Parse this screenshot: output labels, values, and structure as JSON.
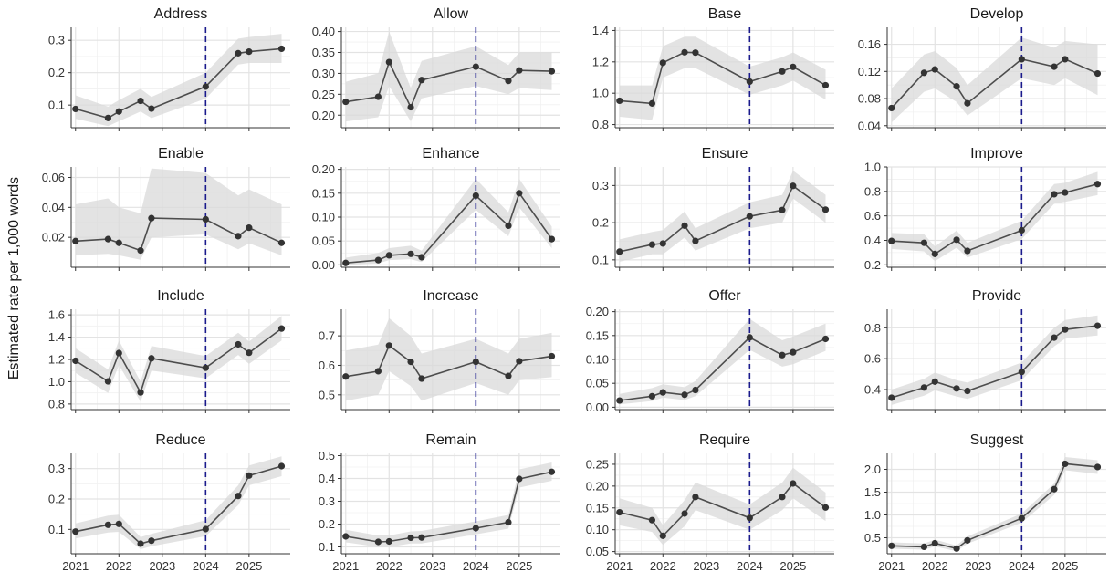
{
  "chart_data": {
    "type": "line",
    "ylabel": "Estimated rate per 1,000 words",
    "x_ticks": [
      2021,
      2022,
      2023,
      2024,
      2025
    ],
    "x": [
      2021.0,
      2021.75,
      2022.0,
      2022.5,
      2022.75,
      2023.0,
      2024.0,
      2024.75,
      2025.0,
      2025.75
    ],
    "reference_line_x": 2024.0,
    "colors": {
      "line": "#4d4d4d",
      "point": "#333333",
      "ribbon": "#d9d9d9",
      "reference": "#1a1a8c",
      "grid_major": "#e3e3e3",
      "grid_minor": "#f1f1f1"
    },
    "panels": [
      {
        "title": "Address",
        "ylim": [
          0.03,
          0.34
        ],
        "yticks": [
          "0.1",
          "0.2",
          "0.3"
        ],
        "values": [
          0.088,
          0.06,
          0.08,
          0.113,
          0.089,
          null,
          0.157,
          0.26,
          0.265,
          0.274
        ],
        "lower": [
          0.058,
          0.035,
          0.05,
          0.08,
          0.06,
          null,
          0.12,
          0.225,
          0.23,
          0.23
        ],
        "upper": [
          0.13,
          0.095,
          0.115,
          0.15,
          0.125,
          null,
          0.2,
          0.305,
          0.31,
          0.32
        ]
      },
      {
        "title": "Allow",
        "ylim": [
          0.17,
          0.41
        ],
        "yticks": [
          "0.20",
          "0.25",
          "0.30",
          "0.35",
          "0.40"
        ],
        "values": [
          0.232,
          0.244,
          0.327,
          0.219,
          0.284,
          null,
          0.316,
          0.282,
          0.307,
          0.305
        ],
        "lower": [
          0.185,
          0.195,
          0.27,
          0.185,
          0.24,
          null,
          0.27,
          0.25,
          0.265,
          0.26
        ],
        "upper": [
          0.28,
          0.3,
          0.4,
          0.265,
          0.33,
          null,
          0.365,
          0.32,
          0.35,
          0.35
        ]
      },
      {
        "title": "Base",
        "ylim": [
          0.78,
          1.42
        ],
        "yticks": [
          "0.8",
          "1.0",
          "1.2",
          "1.4"
        ],
        "values": [
          0.952,
          0.935,
          1.194,
          1.261,
          1.259,
          null,
          1.074,
          1.139,
          1.168,
          1.051
        ],
        "lower": [
          0.85,
          0.83,
          1.1,
          1.16,
          1.16,
          null,
          0.99,
          1.05,
          1.08,
          0.96
        ],
        "upper": [
          1.05,
          1.05,
          1.3,
          1.36,
          1.36,
          null,
          1.17,
          1.23,
          1.26,
          1.15
        ]
      },
      {
        "title": "Develop",
        "ylim": [
          0.037,
          0.185
        ],
        "yticks": [
          "0.04",
          "0.08",
          "0.12",
          "0.16"
        ],
        "values": [
          0.066,
          0.118,
          0.123,
          0.098,
          0.073,
          null,
          0.138,
          0.127,
          0.138,
          0.117
        ],
        "lower": [
          0.045,
          0.09,
          0.095,
          0.075,
          0.055,
          null,
          0.11,
          0.1,
          0.11,
          0.085
        ],
        "upper": [
          0.095,
          0.145,
          0.15,
          0.125,
          0.1,
          null,
          0.17,
          0.155,
          0.165,
          0.16
        ]
      },
      {
        "title": "Enable",
        "ylim": [
          0.0,
          0.067
        ],
        "yticks": [
          "0.02",
          "0.04",
          "0.06"
        ],
        "values": [
          0.0175,
          0.0188,
          0.0163,
          0.0112,
          0.0328,
          null,
          0.032,
          0.0208,
          0.0264,
          0.0163
        ],
        "lower": [
          0.008,
          0.009,
          0.008,
          0.005,
          0.02,
          null,
          0.022,
          0.012,
          0.016,
          0.008
        ],
        "upper": [
          0.042,
          0.046,
          0.04,
          0.036,
          0.066,
          null,
          0.063,
          0.048,
          0.052,
          0.042
        ]
      },
      {
        "title": "Enhance",
        "ylim": [
          -0.005,
          0.205
        ],
        "yticks": [
          "0.00",
          "0.05",
          "0.10",
          "0.15",
          "0.20"
        ],
        "values": [
          0.004,
          0.01,
          0.02,
          0.023,
          0.016,
          null,
          0.145,
          0.082,
          0.15,
          0.054
        ],
        "lower": [
          0.0,
          0.003,
          0.01,
          0.012,
          0.006,
          null,
          0.115,
          0.06,
          0.12,
          0.035
        ],
        "upper": [
          0.015,
          0.025,
          0.035,
          0.04,
          0.03,
          null,
          0.18,
          0.11,
          0.18,
          0.08
        ]
      },
      {
        "title": "Ensure",
        "ylim": [
          0.08,
          0.35
        ],
        "yticks": [
          "0.1",
          "0.2",
          "0.3"
        ],
        "values": [
          0.122,
          0.141,
          0.144,
          0.192,
          0.151,
          null,
          0.217,
          0.234,
          0.299,
          0.235
        ],
        "lower": [
          0.095,
          0.115,
          0.115,
          0.16,
          0.125,
          null,
          0.185,
          0.2,
          0.265,
          0.2
        ],
        "upper": [
          0.155,
          0.175,
          0.18,
          0.23,
          0.185,
          null,
          0.255,
          0.275,
          0.34,
          0.275
        ]
      },
      {
        "title": "Improve",
        "ylim": [
          0.18,
          1.0
        ],
        "yticks": [
          "0.2",
          "0.4",
          "0.6",
          "0.8",
          "1.0"
        ],
        "values": [
          0.395,
          0.38,
          0.289,
          0.405,
          0.314,
          null,
          0.482,
          0.777,
          0.791,
          0.86
        ],
        "lower": [
          0.33,
          0.31,
          0.23,
          0.34,
          0.26,
          null,
          0.41,
          0.7,
          0.715,
          0.77
        ],
        "upper": [
          0.46,
          0.45,
          0.35,
          0.48,
          0.38,
          null,
          0.56,
          0.86,
          0.87,
          0.96
        ]
      },
      {
        "title": "Include",
        "ylim": [
          0.75,
          1.65
        ],
        "yticks": [
          "0.8",
          "1.0",
          "1.2",
          "1.4",
          "1.6"
        ],
        "values": [
          1.188,
          1.003,
          1.257,
          0.904,
          1.21,
          null,
          1.125,
          1.335,
          1.26,
          1.477
        ],
        "lower": [
          1.08,
          0.9,
          1.15,
          0.82,
          1.1,
          null,
          1.03,
          1.24,
          1.16,
          1.37
        ],
        "upper": [
          1.3,
          1.11,
          1.37,
          1.0,
          1.32,
          null,
          1.23,
          1.44,
          1.36,
          1.59
        ]
      },
      {
        "title": "Increase",
        "ylim": [
          0.45,
          0.79
        ],
        "yticks": [
          "0.5",
          "0.6",
          "0.7"
        ],
        "values": [
          0.562,
          0.58,
          0.667,
          0.612,
          0.555,
          null,
          0.612,
          0.564,
          0.614,
          0.631
        ],
        "lower": [
          0.48,
          0.5,
          0.58,
          0.53,
          0.48,
          null,
          0.54,
          0.5,
          0.55,
          0.56
        ],
        "upper": [
          0.65,
          0.67,
          0.76,
          0.7,
          0.64,
          null,
          0.69,
          0.64,
          0.69,
          0.71
        ]
      },
      {
        "title": "Offer",
        "ylim": [
          -0.005,
          0.205
        ],
        "yticks": [
          "0.00",
          "0.05",
          "0.10",
          "0.15",
          "0.20"
        ],
        "values": [
          0.014,
          0.023,
          0.031,
          0.026,
          0.036,
          null,
          0.146,
          0.109,
          0.115,
          0.143
        ],
        "lower": [
          0.006,
          0.013,
          0.02,
          0.015,
          0.023,
          null,
          0.12,
          0.085,
          0.09,
          0.118
        ],
        "upper": [
          0.028,
          0.04,
          0.048,
          0.042,
          0.055,
          null,
          0.185,
          0.14,
          0.148,
          0.175
        ]
      },
      {
        "title": "Provide",
        "ylim": [
          0.27,
          0.92
        ],
        "yticks": [
          "0.4",
          "0.6",
          "0.8"
        ],
        "values": [
          0.347,
          0.413,
          0.451,
          0.407,
          0.391,
          null,
          0.514,
          0.736,
          0.789,
          0.813
        ],
        "lower": [
          0.3,
          0.36,
          0.395,
          0.355,
          0.34,
          null,
          0.46,
          0.68,
          0.73,
          0.75
        ],
        "upper": [
          0.4,
          0.47,
          0.51,
          0.46,
          0.445,
          null,
          0.575,
          0.8,
          0.85,
          0.88
        ]
      },
      {
        "title": "Reduce",
        "ylim": [
          0.02,
          0.35
        ],
        "yticks": [
          "0.1",
          "0.2",
          "0.3"
        ],
        "values": [
          0.093,
          0.115,
          0.118,
          0.053,
          0.063,
          null,
          0.101,
          0.21,
          0.277,
          0.308
        ],
        "lower": [
          0.07,
          0.09,
          0.092,
          0.035,
          0.045,
          null,
          0.078,
          0.18,
          0.245,
          0.275
        ],
        "upper": [
          0.12,
          0.145,
          0.148,
          0.075,
          0.085,
          null,
          0.13,
          0.245,
          0.31,
          0.34
        ]
      },
      {
        "title": "Remain",
        "ylim": [
          0.07,
          0.51
        ],
        "yticks": [
          "0.1",
          "0.2",
          "0.3",
          "0.4",
          "0.5"
        ],
        "values": [
          0.146,
          0.122,
          0.124,
          0.14,
          0.141,
          null,
          0.182,
          0.208,
          0.398,
          0.429
        ],
        "lower": [
          0.12,
          0.1,
          0.1,
          0.115,
          0.115,
          null,
          0.155,
          0.18,
          0.36,
          0.39
        ],
        "upper": [
          0.175,
          0.15,
          0.15,
          0.168,
          0.17,
          null,
          0.212,
          0.24,
          0.44,
          0.47
        ]
      },
      {
        "title": "Require",
        "ylim": [
          0.045,
          0.275
        ],
        "yticks": [
          "0.05",
          "0.10",
          "0.15",
          "0.20",
          "0.25"
        ],
        "values": [
          0.14,
          0.122,
          0.086,
          0.137,
          0.175,
          null,
          0.127,
          0.175,
          0.206,
          0.151
        ],
        "lower": [
          0.11,
          0.095,
          0.065,
          0.108,
          0.145,
          null,
          0.1,
          0.145,
          0.172,
          0.12
        ],
        "upper": [
          0.172,
          0.15,
          0.11,
          0.168,
          0.208,
          null,
          0.158,
          0.208,
          0.242,
          0.185
        ]
      },
      {
        "title": "Suggest",
        "ylim": [
          0.15,
          2.35
        ],
        "yticks": [
          "0.5",
          "1.0",
          "1.5",
          "2.0"
        ],
        "values": [
          0.324,
          0.302,
          0.38,
          0.264,
          0.443,
          null,
          0.927,
          1.565,
          2.121,
          2.051
        ],
        "lower": [
          0.26,
          0.24,
          0.31,
          0.205,
          0.37,
          null,
          0.83,
          1.44,
          1.98,
          1.9
        ],
        "upper": [
          0.4,
          0.375,
          0.46,
          0.33,
          0.53,
          null,
          1.03,
          1.69,
          2.27,
          2.2
        ]
      }
    ]
  }
}
